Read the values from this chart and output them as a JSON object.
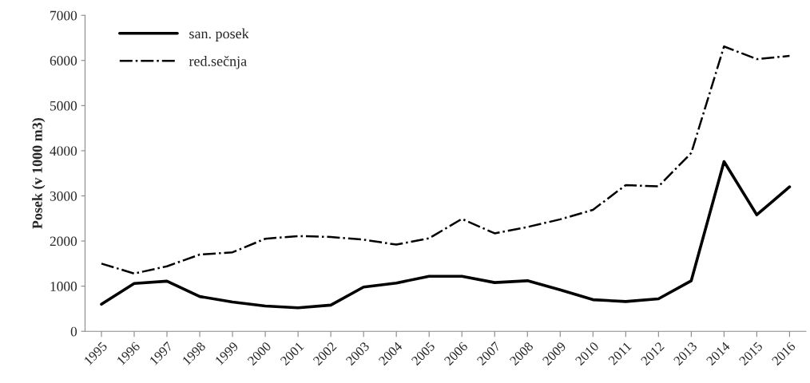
{
  "chart_data": {
    "type": "line",
    "ylabel": "Posek (v 1000 m3)",
    "categories": [
      "1995",
      "1996",
      "1997",
      "1998",
      "1999",
      "2000",
      "2001",
      "2002",
      "2003",
      "2004",
      "2005",
      "2006",
      "2007",
      "2008",
      "2009",
      "2010",
      "2011",
      "2012",
      "2013",
      "2014",
      "2015",
      "2016"
    ],
    "series": [
      {
        "name": "san. posek",
        "color": "#000000",
        "line_style": "solid",
        "values": [
          600,
          1060,
          1110,
          770,
          650,
          560,
          520,
          580,
          980,
          1070,
          1220,
          1220,
          1080,
          1120,
          920,
          700,
          660,
          720,
          1120,
          3760,
          2580,
          3200
        ]
      },
      {
        "name": "red.sečnja",
        "color": "#000000",
        "line_style": "dashdot",
        "values": [
          1500,
          1280,
          1440,
          1700,
          1750,
          2050,
          2110,
          2090,
          2030,
          1920,
          2060,
          2490,
          2170,
          2310,
          2480,
          2690,
          3240,
          3210,
          3950,
          6310,
          6030,
          6100
        ]
      }
    ],
    "ylim": [
      0,
      7000
    ],
    "yticks": [
      0,
      1000,
      2000,
      3000,
      4000,
      5000,
      6000,
      7000
    ],
    "grid": false,
    "legend": "top left",
    "marker": "none"
  }
}
